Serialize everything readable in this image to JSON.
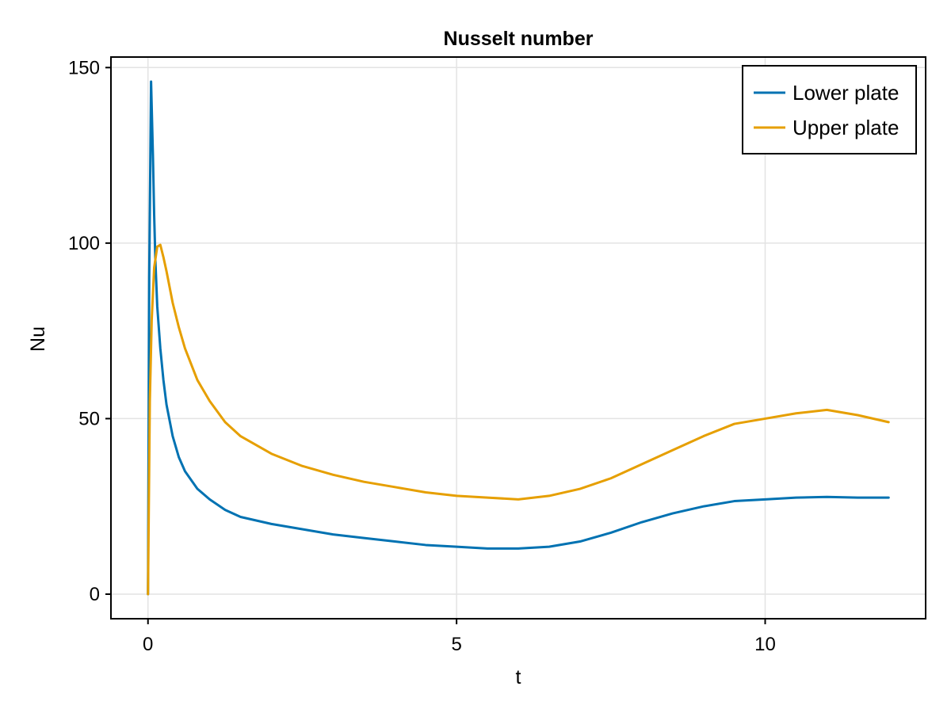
{
  "chart_data": {
    "type": "line",
    "title": "Nusselt number",
    "xlabel": "t",
    "ylabel": "Nu",
    "xlim": [
      -0.6,
      12.6
    ],
    "ylim": [
      -7,
      153
    ],
    "xticks": [
      0,
      5,
      10
    ],
    "yticks": [
      0,
      50,
      100,
      150
    ],
    "xtick_labels": [
      "0",
      "5",
      "10"
    ],
    "ytick_labels": [
      "0",
      "50",
      "100",
      "150"
    ],
    "grid": true,
    "legend_position": "top-right",
    "series": [
      {
        "name": "Lower plate",
        "color": "#0072b2",
        "x": [
          0,
          0.02,
          0.05,
          0.08,
          0.1,
          0.12,
          0.15,
          0.2,
          0.25,
          0.3,
          0.4,
          0.5,
          0.6,
          0.8,
          1.0,
          1.25,
          1.5,
          2.0,
          2.5,
          3.0,
          3.5,
          4.0,
          4.5,
          5.0,
          5.5,
          6.0,
          6.5,
          7.0,
          7.5,
          8.0,
          8.5,
          9.0,
          9.5,
          10.0,
          10.5,
          11.0,
          11.5,
          12.0
        ],
        "y": [
          0,
          90,
          146,
          125,
          108,
          95,
          82,
          70,
          61,
          54,
          45,
          39,
          35,
          30,
          27,
          24,
          22,
          20,
          18.5,
          17,
          16,
          15,
          14,
          13.5,
          13,
          13,
          13.5,
          15,
          17.5,
          20.5,
          23,
          25,
          26.5,
          27,
          27.5,
          27.7,
          27.5,
          27.5
        ]
      },
      {
        "name": "Upper plate",
        "color": "#e69f00",
        "x": [
          0,
          0.03,
          0.06,
          0.1,
          0.15,
          0.2,
          0.25,
          0.3,
          0.4,
          0.5,
          0.6,
          0.8,
          1.0,
          1.25,
          1.5,
          2.0,
          2.5,
          3.0,
          3.5,
          4.0,
          4.5,
          5.0,
          5.5,
          6.0,
          6.5,
          7.0,
          7.5,
          8.0,
          8.5,
          9.0,
          9.5,
          10.0,
          10.5,
          11.0,
          11.5,
          12.0
        ],
        "y": [
          0,
          55,
          78,
          93,
          99,
          99.5,
          96,
          92,
          83,
          76,
          70,
          61,
          55,
          49,
          45,
          40,
          36.5,
          34,
          32,
          30.5,
          29,
          28,
          27.5,
          27,
          28,
          30,
          33,
          37,
          41,
          45,
          48.5,
          50,
          51.5,
          52.5,
          51,
          49
        ]
      }
    ]
  }
}
